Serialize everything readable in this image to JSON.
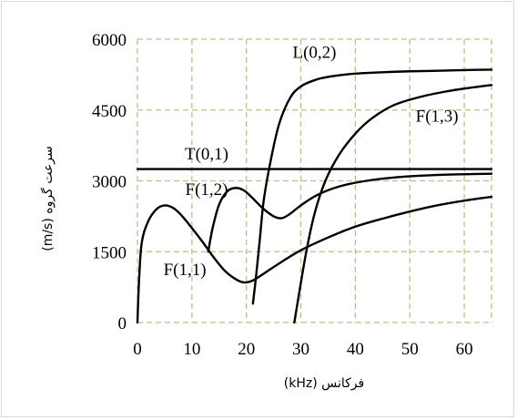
{
  "chart_data": {
    "type": "line",
    "title": "",
    "xlabel": "فرکانس (kHz)",
    "ylabel": "سرعت گروه (m/s)",
    "xlim": [
      0,
      65
    ],
    "ylim": [
      0,
      6000
    ],
    "xticks": [
      0,
      10,
      20,
      30,
      40,
      50,
      60
    ],
    "yticks": [
      0,
      1500,
      3000,
      4500,
      6000
    ],
    "grid": true,
    "grid_style": "dashed",
    "grid_color": "#c9b98a",
    "line_color": "#000000",
    "series": [
      {
        "name": "T(0,1)",
        "points": [
          [
            0,
            3250
          ],
          [
            65,
            3250
          ]
        ]
      },
      {
        "name": "L(0,2)",
        "points": [
          [
            21.2,
            400
          ],
          [
            21.8,
            1000
          ],
          [
            22.5,
            1800
          ],
          [
            23.2,
            2600
          ],
          [
            24.5,
            3450
          ],
          [
            26,
            4200
          ],
          [
            28,
            4750
          ],
          [
            30,
            5000
          ],
          [
            33,
            5150
          ],
          [
            36,
            5220
          ],
          [
            40,
            5270
          ],
          [
            45,
            5300
          ],
          [
            50,
            5320
          ],
          [
            55,
            5330
          ],
          [
            60,
            5345
          ],
          [
            65,
            5355
          ]
        ]
      },
      {
        "name": "F(1,3)",
        "points": [
          [
            28.8,
            0
          ],
          [
            29.8,
            700
          ],
          [
            31,
            1500
          ],
          [
            32.5,
            2300
          ],
          [
            34.5,
            3000
          ],
          [
            37,
            3550
          ],
          [
            40,
            4000
          ],
          [
            43,
            4320
          ],
          [
            47,
            4600
          ],
          [
            52,
            4780
          ],
          [
            57,
            4900
          ],
          [
            61,
            4970
          ],
          [
            65,
            5030
          ]
        ]
      },
      {
        "name": "F(1,2)",
        "points": [
          [
            13,
            1500
          ],
          [
            13.8,
            2000
          ],
          [
            15,
            2500
          ],
          [
            16.5,
            2780
          ],
          [
            18,
            2850
          ],
          [
            19.5,
            2800
          ],
          [
            21,
            2650
          ],
          [
            23,
            2420
          ],
          [
            25,
            2250
          ],
          [
            26.5,
            2210
          ],
          [
            28,
            2300
          ],
          [
            30,
            2480
          ],
          [
            33,
            2700
          ],
          [
            37,
            2880
          ],
          [
            42,
            3000
          ],
          [
            48,
            3080
          ],
          [
            54,
            3120
          ],
          [
            60,
            3140
          ],
          [
            65,
            3150
          ]
        ]
      },
      {
        "name": "F(1,1)",
        "points": [
          [
            0,
            0
          ],
          [
            0.3,
            900
          ],
          [
            0.8,
            1700
          ],
          [
            2,
            2150
          ],
          [
            3.5,
            2400
          ],
          [
            5,
            2480
          ],
          [
            6.5,
            2430
          ],
          [
            8,
            2280
          ],
          [
            10,
            2000
          ],
          [
            12,
            1700
          ],
          [
            14,
            1380
          ],
          [
            16,
            1100
          ],
          [
            18,
            920
          ],
          [
            19.5,
            850
          ],
          [
            21,
            880
          ],
          [
            23,
            1020
          ],
          [
            26,
            1250
          ],
          [
            30,
            1530
          ],
          [
            35,
            1800
          ],
          [
            40,
            2030
          ],
          [
            45,
            2200
          ],
          [
            50,
            2350
          ],
          [
            55,
            2480
          ],
          [
            60,
            2580
          ],
          [
            65,
            2660
          ]
        ]
      }
    ],
    "annotations": [
      {
        "text": "L(0,2)",
        "x": 32.5,
        "y": 5600
      },
      {
        "text": "F(1,3)",
        "x": 55,
        "y": 4250
      },
      {
        "text": "T(0,1)",
        "x": 12.7,
        "y": 3450
      },
      {
        "text": "F(1,2)",
        "x": 12.7,
        "y": 2700
      },
      {
        "text": "F(1,1)",
        "x": 8.7,
        "y": 1000
      }
    ]
  }
}
